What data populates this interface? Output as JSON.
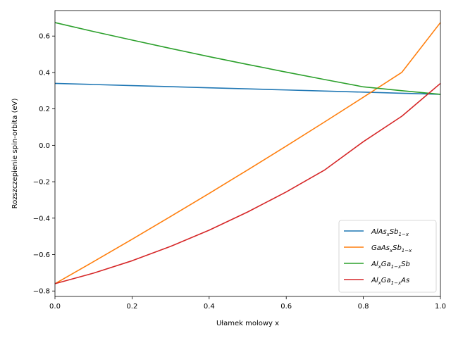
{
  "chart_data": {
    "type": "line",
    "xlabel": "Ułamek molowy x",
    "ylabel": "Rozszczepienie spin-orbita (eV)",
    "xlim": [
      0.0,
      1.0
    ],
    "ylim": [
      -0.83,
      0.74
    ],
    "grid": false,
    "legend_position": "lower-right",
    "x_ticks": [
      "0.0",
      "0.2",
      "0.4",
      "0.6",
      "0.8",
      "1.0"
    ],
    "y_ticks": [
      "−0.8",
      "−0.6",
      "−0.4",
      "−0.2",
      "0.0",
      "0.2",
      "0.4",
      "0.6"
    ],
    "x": [
      0.0,
      0.1,
      0.2,
      0.3,
      0.4,
      0.5,
      0.6,
      0.7,
      0.8,
      0.9,
      1.0
    ],
    "series": [
      {
        "name": "AlAs_xSb_{1-x}",
        "legend_main": [
          "AlAs",
          "x",
          "Sb",
          "1−x",
          ""
        ],
        "color": "#1f77b4",
        "values": [
          0.34,
          0.334,
          0.328,
          0.322,
          0.316,
          0.31,
          0.304,
          0.298,
          0.292,
          0.286,
          0.28
        ]
      },
      {
        "name": "GaAs_xSb_{1-x}",
        "legend_main": [
          "GaAs",
          "x",
          "Sb",
          "1−x",
          ""
        ],
        "color": "#ff7f0e",
        "values": [
          -0.76,
          -0.639,
          -0.516,
          -0.391,
          -0.264,
          -0.135,
          -0.004,
          0.129,
          0.264,
          0.401,
          0.674
        ]
      },
      {
        "name": "Al_xGa_{1-x}Sb",
        "legend_main": [
          "Al",
          "x",
          "Ga",
          "1−x",
          "Sb"
        ],
        "color": "#2ca02c",
        "values": [
          0.674,
          0.625,
          0.578,
          0.532,
          0.487,
          0.444,
          0.402,
          0.361,
          0.321,
          0.3,
          0.28
        ]
      },
      {
        "name": "Al_xGa_{1-x}As",
        "legend_main": [
          "Al",
          "x",
          "Ga",
          "1−x",
          "As"
        ],
        "color": "#d62728",
        "values": [
          -0.76,
          -0.702,
          -0.634,
          -0.555,
          -0.466,
          -0.366,
          -0.256,
          -0.135,
          0.02,
          0.16,
          0.34
        ]
      }
    ]
  }
}
